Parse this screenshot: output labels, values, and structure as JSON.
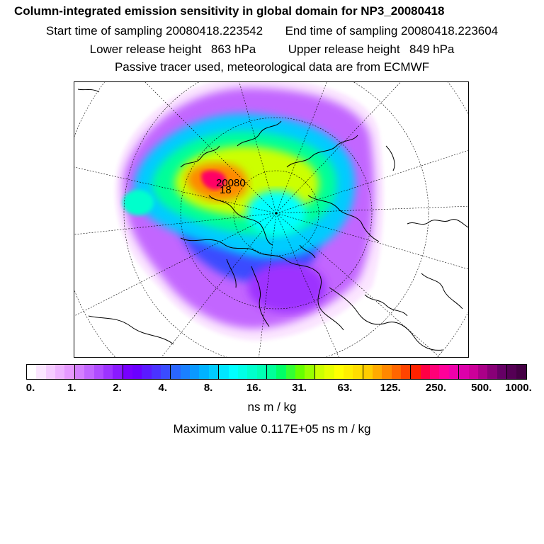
{
  "title": "Column-integrated emission sensitivity in global domain for NP3_20080418",
  "sampling": {
    "start_label": "Start time of sampling",
    "start_value": "20080418.223542",
    "end_label": "End time of sampling",
    "end_value": "20080418.223604"
  },
  "release": {
    "lower_label": "Lower release height",
    "lower_value": "863 hPa",
    "upper_label": "Upper release height",
    "upper_value": "849 hPa"
  },
  "note": "Passive tracer used, meteorological data are from ECMWF",
  "map_labels": [
    "20080",
    "18"
  ],
  "colorbar": {
    "ticks": [
      "0.",
      "1.",
      "2.",
      "4.",
      "8.",
      "16.",
      "31.",
      "63.",
      "125.",
      "250.",
      "500.",
      "1000."
    ],
    "colors": [
      "#ffffff",
      "#fbe6ff",
      "#f5ccff",
      "#eeb3ff",
      "#e699ff",
      "#d47fff",
      "#c266ff",
      "#b04cff",
      "#9d33ff",
      "#8a1aff",
      "#7700ff",
      "#6a00ff",
      "#5a1aff",
      "#4a33ff",
      "#3a4cff",
      "#2a66ff",
      "#1a80ff",
      "#0a99ff",
      "#00b3ff",
      "#00ccff",
      "#00e6ff",
      "#00ffff",
      "#00ffe6",
      "#00ffcc",
      "#00ffb3",
      "#00ff99",
      "#00ff66",
      "#33ff33",
      "#66ff00",
      "#99ff00",
      "#ccff00",
      "#e6ff00",
      "#ffff00",
      "#ffee00",
      "#ffdd00",
      "#ffcc00",
      "#ffaa00",
      "#ff8800",
      "#ff6600",
      "#ff4400",
      "#ff2200",
      "#ff0044",
      "#ff0077",
      "#ff0099",
      "#ee00aa",
      "#dd00aa",
      "#cc0099",
      "#aa0088",
      "#880077",
      "#660066",
      "#550055",
      "#440044"
    ],
    "units": "ns m / kg"
  },
  "max_value_label": "Maximum value  0.117E+05 ns m / kg"
}
